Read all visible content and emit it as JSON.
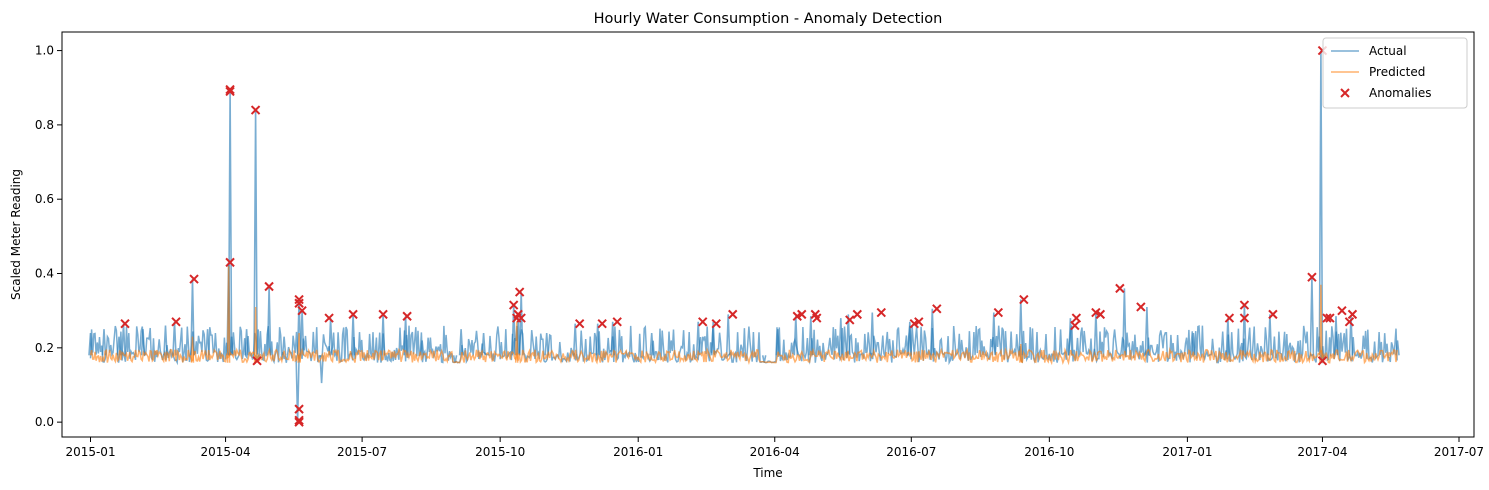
{
  "colors": {
    "actual": "#1f77b4",
    "predicted": "#ff7f0e",
    "anomaly": "#d62728"
  },
  "chart_data": {
    "type": "line",
    "title": "Hourly Water Consumption - Anomaly Detection",
    "xlabel": "Time",
    "ylabel": "Scaled Meter Reading",
    "x_range": [
      "2014-12-13",
      "2017-07-11"
    ],
    "ylim": [
      -0.04,
      1.05
    ],
    "x_ticks": [
      "2015-01",
      "2015-04",
      "2015-07",
      "2015-10",
      "2016-01",
      "2016-04",
      "2016-07",
      "2016-10",
      "2017-01",
      "2017-04",
      "2017-07"
    ],
    "y_ticks": [
      "0.0",
      "0.2",
      "0.4",
      "0.6",
      "0.8",
      "1.0"
    ],
    "grid": false,
    "legend_position": "top-right",
    "series": [
      {
        "name": "Actual",
        "style": "line",
        "color": "#1f77b4",
        "baseline": 0.16,
        "points": [
          [
            "2015-01-01",
            0.24
          ],
          [
            "2015-01-10",
            0.25
          ],
          [
            "2015-01-20",
            0.23
          ],
          [
            "2015-01-23",
            0.265
          ],
          [
            "2015-02-05",
            0.25
          ],
          [
            "2015-02-20",
            0.26
          ],
          [
            "2015-02-26",
            0.27
          ],
          [
            "2015-03-10",
            0.385
          ],
          [
            "2015-03-20",
            0.25
          ],
          [
            "2015-04-03",
            0.43
          ],
          [
            "2015-04-04",
            0.895
          ],
          [
            "2015-04-05",
            0.23
          ],
          [
            "2015-04-15",
            0.25
          ],
          [
            "2015-04-21",
            0.84
          ],
          [
            "2015-04-22",
            0.17
          ],
          [
            "2015-04-30",
            0.365
          ],
          [
            "2015-05-10",
            0.23
          ],
          [
            "2015-05-19",
            0.0
          ],
          [
            "2015-05-20",
            0.33
          ],
          [
            "2015-05-22",
            0.3
          ],
          [
            "2015-06-04",
            0.105
          ],
          [
            "2015-06-10",
            0.28
          ],
          [
            "2015-06-25",
            0.29
          ],
          [
            "2015-07-15",
            0.29
          ],
          [
            "2015-07-30",
            0.285
          ],
          [
            "2015-08-10",
            0.22
          ],
          [
            "2015-09-01",
            0.16
          ],
          [
            "2015-09-05",
            0.25
          ],
          [
            "2015-09-20",
            0.24
          ],
          [
            "2015-10-10",
            0.315
          ],
          [
            "2015-10-13",
            0.28
          ],
          [
            "2015-10-15",
            0.35
          ],
          [
            "2015-11-01",
            0.24
          ],
          [
            "2015-11-20",
            0.265
          ],
          [
            "2015-12-05",
            0.265
          ],
          [
            "2015-12-15",
            0.27
          ],
          [
            "2016-01-10",
            0.24
          ],
          [
            "2016-02-10",
            0.27
          ],
          [
            "2016-02-20",
            0.27
          ],
          [
            "2016-03-01",
            0.29
          ],
          [
            "2016-03-25",
            0.16
          ],
          [
            "2016-04-03",
            0.25
          ],
          [
            "2016-04-15",
            0.285
          ],
          [
            "2016-04-25",
            0.285
          ],
          [
            "2016-05-15",
            0.28
          ],
          [
            "2016-05-20",
            0.29
          ],
          [
            "2016-06-05",
            0.295
          ],
          [
            "2016-06-30",
            0.27
          ],
          [
            "2016-07-15",
            0.305
          ],
          [
            "2016-08-25",
            0.295
          ],
          [
            "2016-09-12",
            0.33
          ],
          [
            "2016-10-15",
            0.28
          ],
          [
            "2016-11-01",
            0.295
          ],
          [
            "2016-11-20",
            0.36
          ],
          [
            "2016-12-05",
            0.31
          ],
          [
            "2017-01-05",
            0.24
          ],
          [
            "2017-01-28",
            0.28
          ],
          [
            "2017-02-08",
            0.315
          ],
          [
            "2017-02-25",
            0.29
          ],
          [
            "2017-03-25",
            0.39
          ],
          [
            "2017-03-31",
            1.0
          ],
          [
            "2017-04-01",
            0.165
          ],
          [
            "2017-04-10",
            0.285
          ],
          [
            "2017-04-20",
            0.285
          ],
          [
            "2017-05-21",
            0.22
          ]
        ]
      },
      {
        "name": "Predicted",
        "style": "line",
        "color": "#ff7f0e",
        "baseline": 0.16,
        "points": [
          [
            "2015-03-10",
            0.23
          ],
          [
            "2015-04-03",
            0.42
          ],
          [
            "2015-04-21",
            0.31
          ],
          [
            "2015-05-20",
            0.24
          ],
          [
            "2015-10-12",
            0.27
          ],
          [
            "2016-09-12",
            0.21
          ],
          [
            "2017-03-31",
            0.37
          ]
        ]
      },
      {
        "name": "Anomalies",
        "style": "scatter",
        "color": "#d62728",
        "points": [
          [
            "2015-01-24",
            0.265
          ],
          [
            "2015-02-27",
            0.27
          ],
          [
            "2015-03-11",
            0.385
          ],
          [
            "2015-04-04",
            0.43
          ],
          [
            "2015-04-04",
            0.895
          ],
          [
            "2015-04-04",
            0.89
          ],
          [
            "2015-04-21",
            0.84
          ],
          [
            "2015-04-22",
            0.165
          ],
          [
            "2015-04-30",
            0.365
          ],
          [
            "2015-05-20",
            0.0
          ],
          [
            "2015-05-20",
            0.005
          ],
          [
            "2015-05-20",
            0.035
          ],
          [
            "2015-05-20",
            0.33
          ],
          [
            "2015-05-20",
            0.32
          ],
          [
            "2015-05-22",
            0.3
          ],
          [
            "2015-06-09",
            0.28
          ],
          [
            "2015-06-25",
            0.29
          ],
          [
            "2015-07-15",
            0.29
          ],
          [
            "2015-07-31",
            0.285
          ],
          [
            "2015-10-10",
            0.315
          ],
          [
            "2015-10-12",
            0.28
          ],
          [
            "2015-10-13",
            0.29
          ],
          [
            "2015-10-14",
            0.35
          ],
          [
            "2015-10-15",
            0.28
          ],
          [
            "2015-11-23",
            0.265
          ],
          [
            "2015-12-08",
            0.265
          ],
          [
            "2015-12-18",
            0.27
          ],
          [
            "2016-02-13",
            0.27
          ],
          [
            "2016-02-22",
            0.265
          ],
          [
            "2016-03-04",
            0.29
          ],
          [
            "2016-04-16",
            0.285
          ],
          [
            "2016-04-19",
            0.29
          ],
          [
            "2016-04-28",
            0.29
          ],
          [
            "2016-04-29",
            0.28
          ],
          [
            "2016-05-21",
            0.275
          ],
          [
            "2016-05-26",
            0.29
          ],
          [
            "2016-06-11",
            0.295
          ],
          [
            "2016-07-03",
            0.265
          ],
          [
            "2016-07-06",
            0.27
          ],
          [
            "2016-07-18",
            0.305
          ],
          [
            "2016-08-28",
            0.295
          ],
          [
            "2016-09-14",
            0.33
          ],
          [
            "2016-10-18",
            0.26
          ],
          [
            "2016-10-19",
            0.28
          ],
          [
            "2016-11-01",
            0.295
          ],
          [
            "2016-11-04",
            0.29
          ],
          [
            "2016-11-17",
            0.36
          ],
          [
            "2016-12-01",
            0.31
          ],
          [
            "2017-01-29",
            0.28
          ],
          [
            "2017-02-08",
            0.315
          ],
          [
            "2017-02-08",
            0.28
          ],
          [
            "2017-02-27",
            0.29
          ],
          [
            "2017-03-25",
            0.39
          ],
          [
            "2017-04-01",
            1.0
          ],
          [
            "2017-04-01",
            0.165
          ],
          [
            "2017-04-04",
            0.28
          ],
          [
            "2017-04-06",
            0.28
          ],
          [
            "2017-04-14",
            0.3
          ],
          [
            "2017-04-19",
            0.27
          ],
          [
            "2017-04-21",
            0.29
          ]
        ]
      }
    ]
  }
}
